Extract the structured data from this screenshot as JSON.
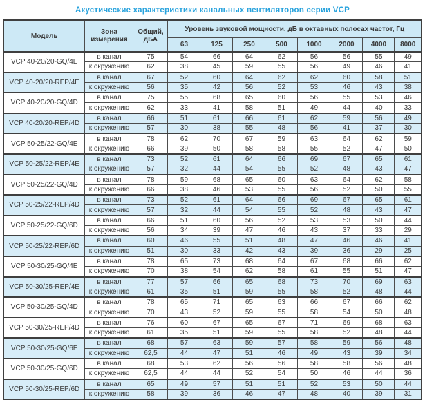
{
  "title": "Акустические характеристики канальных вентиляторов  серии VCP",
  "colors": {
    "title_text": "#29a3dd",
    "header_bg": "#cde9f6",
    "row_alt_bg": "#d7edf8",
    "border": "#4d4d4d"
  },
  "table": {
    "col_model": "Модель",
    "col_zone": "Зона измерения",
    "col_total": "Общий, дБА",
    "col_freq_group": "Уровень звуковой мощности, дБ в октавных полосах частот, Гц",
    "freq_labels": [
      "63",
      "125",
      "250",
      "500",
      "1000",
      "2000",
      "4000",
      "8000"
    ],
    "groups": [
      {
        "model": "VCP 40-20/20-GQ/4E",
        "shaded": false,
        "rows": [
          {
            "zone": "в канал",
            "total": "75",
            "levels": [
              "54",
              "66",
              "64",
              "62",
              "56",
              "56",
              "55",
              "49"
            ]
          },
          {
            "zone": "к окружению",
            "total": "62",
            "levels": [
              "38",
              "45",
              "59",
              "55",
              "56",
              "49",
              "46",
              "41"
            ]
          }
        ]
      },
      {
        "model": "VCP 40-20/20-REP/4E",
        "shaded": true,
        "rows": [
          {
            "zone": "в канал",
            "total": "67",
            "levels": [
              "52",
              "60",
              "64",
              "62",
              "62",
              "60",
              "58",
              "51"
            ]
          },
          {
            "zone": "к окружению",
            "total": "56",
            "levels": [
              "35",
              "42",
              "56",
              "52",
              "53",
              "46",
              "43",
              "38"
            ]
          }
        ]
      },
      {
        "model": "VCP 40-20/20-GQ/4D",
        "shaded": false,
        "rows": [
          {
            "zone": "в канал",
            "total": "75",
            "levels": [
              "55",
              "68",
              "65",
              "60",
              "56",
              "55",
              "53",
              "46"
            ]
          },
          {
            "zone": "к окружению",
            "total": "62",
            "levels": [
              "33",
              "41",
              "58",
              "51",
              "49",
              "44",
              "40",
              "33"
            ]
          }
        ]
      },
      {
        "model": "VCP 40-20/20-REP/4D",
        "shaded": true,
        "rows": [
          {
            "zone": "в канал",
            "total": "66",
            "levels": [
              "51",
              "61",
              "66",
              "61",
              "62",
              "59",
              "56",
              "49"
            ]
          },
          {
            "zone": "к окружению",
            "total": "57",
            "levels": [
              "30",
              "38",
              "55",
              "48",
              "56",
              "41",
              "37",
              "30"
            ]
          }
        ]
      },
      {
        "model": "VCP 50-25/22-GQ/4E",
        "shaded": false,
        "rows": [
          {
            "zone": "в канал",
            "total": "78",
            "levels": [
              "62",
              "70",
              "67",
              "59",
              "63",
              "64",
              "62",
              "59"
            ]
          },
          {
            "zone": "к окружению",
            "total": "66",
            "levels": [
              "39",
              "50",
              "58",
              "58",
              "55",
              "52",
              "47",
              "50"
            ]
          }
        ]
      },
      {
        "model": "VCP 50-25/22-REP/4E",
        "shaded": true,
        "rows": [
          {
            "zone": "в канал",
            "total": "73",
            "levels": [
              "52",
              "61",
              "64",
              "66",
              "69",
              "67",
              "65",
              "61"
            ]
          },
          {
            "zone": "к окружению",
            "total": "57",
            "levels": [
              "32",
              "44",
              "54",
              "55",
              "52",
              "48",
              "43",
              "47"
            ]
          }
        ]
      },
      {
        "model": "VCP 50-25/22-GQ/4D",
        "shaded": false,
        "rows": [
          {
            "zone": "в канал",
            "total": "78",
            "levels": [
              "59",
              "68",
              "65",
              "60",
              "63",
              "64",
              "62",
              "58"
            ]
          },
          {
            "zone": "к окружению",
            "total": "66",
            "levels": [
              "38",
              "46",
              "53",
              "55",
              "56",
              "52",
              "50",
              "55"
            ]
          }
        ]
      },
      {
        "model": "VCP 50-25/22-REP/4D",
        "shaded": true,
        "rows": [
          {
            "zone": "в канал",
            "total": "73",
            "levels": [
              "52",
              "61",
              "64",
              "66",
              "69",
              "67",
              "65",
              "61"
            ]
          },
          {
            "zone": "к окружению",
            "total": "57",
            "levels": [
              "32",
              "44",
              "54",
              "55",
              "52",
              "48",
              "43",
              "47"
            ]
          }
        ]
      },
      {
        "model": "VCP 50-25/22-GQ/6D",
        "shaded": false,
        "rows": [
          {
            "zone": "в канал",
            "total": "66",
            "levels": [
              "51",
              "60",
              "56",
              "52",
              "53",
              "53",
              "50",
              "44"
            ]
          },
          {
            "zone": "к окружению",
            "total": "56",
            "levels": [
              "34",
              "39",
              "47",
              "46",
              "43",
              "37",
              "33",
              "29"
            ]
          }
        ]
      },
      {
        "model": "VCP 50-25/22-REP/6D",
        "shaded": true,
        "rows": [
          {
            "zone": "в канал",
            "total": "60",
            "levels": [
              "46",
              "55",
              "51",
              "48",
              "47",
              "46",
              "46",
              "41"
            ]
          },
          {
            "zone": "к окружению",
            "total": "51",
            "levels": [
              "30",
              "33",
              "42",
              "43",
              "39",
              "36",
              "29",
              "25"
            ]
          }
        ]
      },
      {
        "model": "VCP 50-30/25-GQ/4E",
        "shaded": false,
        "rows": [
          {
            "zone": "в канал",
            "total": "78",
            "levels": [
              "65",
              "73",
              "68",
              "64",
              "67",
              "68",
              "66",
              "62"
            ]
          },
          {
            "zone": "к окружению",
            "total": "70",
            "levels": [
              "38",
              "54",
              "62",
              "58",
              "61",
              "55",
              "51",
              "47"
            ]
          }
        ]
      },
      {
        "model": "VCP 50-30/25-REP/4E",
        "shaded": true,
        "rows": [
          {
            "zone": "в канал",
            "total": "77",
            "levels": [
              "57",
              "66",
              "65",
              "68",
              "73",
              "70",
              "69",
              "63"
            ]
          },
          {
            "zone": "к окружению",
            "total": "61",
            "levels": [
              "35",
              "51",
              "59",
              "55",
              "58",
              "52",
              "48",
              "44"
            ]
          }
        ]
      },
      {
        "model": "VCP 50-30/25-GQ/4D",
        "shaded": false,
        "rows": [
          {
            "zone": "в канал",
            "total": "78",
            "levels": [
              "65",
              "71",
              "65",
              "63",
              "66",
              "67",
              "66",
              "62"
            ]
          },
          {
            "zone": "к окружению",
            "total": "70",
            "levels": [
              "43",
              "52",
              "59",
              "55",
              "58",
              "54",
              "50",
              "48"
            ]
          }
        ]
      },
      {
        "model": "VCP 50-30/25-REP/4D",
        "shaded": false,
        "rows": [
          {
            "zone": "в канал",
            "total": "76",
            "levels": [
              "60",
              "67",
              "65",
              "67",
              "71",
              "69",
              "68",
              "63"
            ]
          },
          {
            "zone": "к окружению",
            "total": "61",
            "levels": [
              "35",
              "51",
              "59",
              "55",
              "58",
              "52",
              "48",
              "44"
            ]
          }
        ]
      },
      {
        "model": "VCP 50-30/25-GQ/6E",
        "shaded": true,
        "rows": [
          {
            "zone": "в канал",
            "total": "68",
            "levels": [
              "57",
              "63",
              "59",
              "57",
              "58",
              "59",
              "56",
              "48"
            ]
          },
          {
            "zone": "к окружению",
            "total": "62,5",
            "levels": [
              "44",
              "47",
              "51",
              "46",
              "49",
              "43",
              "39",
              "34"
            ]
          }
        ]
      },
      {
        "model": "VCP 50-30/25-GQ/6D",
        "shaded": false,
        "rows": [
          {
            "zone": "в канал",
            "total": "68",
            "levels": [
              "53",
              "62",
              "56",
              "56",
              "58",
              "58",
              "56",
              "48"
            ]
          },
          {
            "zone": "к окружению",
            "total": "62,5",
            "levels": [
              "44",
              "44",
              "52",
              "54",
              "50",
              "46",
              "44",
              "36"
            ]
          }
        ]
      },
      {
        "model": "VCP 50-30/25-REP/6D",
        "shaded": true,
        "rows": [
          {
            "zone": "в канал",
            "total": "65",
            "levels": [
              "49",
              "57",
              "51",
              "51",
              "52",
              "53",
              "50",
              "44"
            ]
          },
          {
            "zone": "к окружению",
            "total": "58",
            "levels": [
              "39",
              "36",
              "46",
              "47",
              "48",
              "40",
              "39",
              "31"
            ]
          }
        ]
      }
    ]
  }
}
